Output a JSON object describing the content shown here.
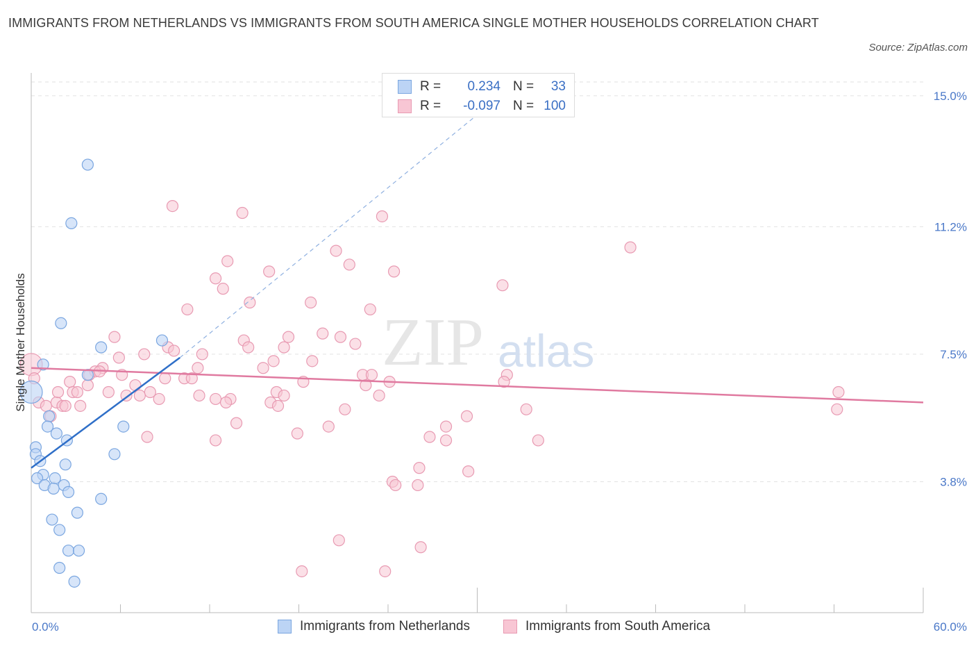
{
  "title": "IMMIGRANTS FROM NETHERLANDS VS IMMIGRANTS FROM SOUTH AMERICA SINGLE MOTHER HOUSEHOLDS CORRELATION CHART",
  "source": "Source: ZipAtlas.com",
  "watermark": {
    "zip": "ZIP",
    "atlas": "atlas"
  },
  "legend": {
    "rows": [
      {
        "r_label": "R =",
        "r_value": "0.234",
        "n_label": "N =",
        "n_value": "33"
      },
      {
        "r_label": "R =",
        "r_value": "-0.097",
        "n_label": "N =",
        "n_value": "100"
      }
    ]
  },
  "bottom_legend": {
    "netherlands": "Immigrants from Netherlands",
    "south_america": "Immigrants from South America"
  },
  "colors": {
    "netherlands_fill": "#bcd4f5",
    "netherlands_stroke": "#7aa6e0",
    "netherlands_line": "#2f6fc8",
    "south_america_fill": "#f8c6d4",
    "south_america_stroke": "#e89ab2",
    "south_america_line": "#e07aa0",
    "tick_text": "#4a78c8",
    "grid": "#e2e2e2"
  },
  "chart_data": {
    "type": "scatter",
    "title": "IMMIGRANTS FROM NETHERLANDS VS IMMIGRANTS FROM SOUTH AMERICA SINGLE MOTHER HOUSEHOLDS CORRELATION CHART",
    "xlabel": "",
    "ylabel": "Single Mother Households",
    "xlim": [
      0,
      60
    ],
    "ylim": [
      0,
      15.4
    ],
    "x_tick_labels": [
      "0.0%",
      "60.0%"
    ],
    "y_ticks": [
      3.8,
      7.5,
      11.2,
      15.0
    ],
    "y_tick_labels": [
      "3.8%",
      "7.5%",
      "11.2%",
      "15.0%"
    ],
    "grid": true,
    "legend_placement": "top-center",
    "series": [
      {
        "name": "Immigrants from Netherlands",
        "trend": {
          "x": [
            0,
            10
          ],
          "y": [
            4.2,
            7.4
          ],
          "dashed_extension_to": [
            31,
            14.8
          ]
        },
        "points": [
          [
            3.8,
            13.0
          ],
          [
            2.7,
            11.3
          ],
          [
            2.0,
            8.4
          ],
          [
            4.7,
            7.7
          ],
          [
            8.8,
            7.9
          ],
          [
            0.8,
            7.2
          ],
          [
            3.8,
            6.9
          ],
          [
            0.0,
            6.4
          ],
          [
            1.2,
            5.7
          ],
          [
            1.1,
            5.4
          ],
          [
            1.7,
            5.2
          ],
          [
            2.4,
            5.0
          ],
          [
            6.2,
            5.4
          ],
          [
            5.6,
            4.6
          ],
          [
            0.3,
            4.8
          ],
          [
            0.3,
            4.6
          ],
          [
            0.6,
            4.4
          ],
          [
            2.3,
            4.3
          ],
          [
            0.8,
            4.0
          ],
          [
            0.4,
            3.9
          ],
          [
            1.6,
            3.9
          ],
          [
            0.9,
            3.7
          ],
          [
            2.2,
            3.7
          ],
          [
            1.5,
            3.6
          ],
          [
            2.5,
            3.5
          ],
          [
            4.7,
            3.3
          ],
          [
            3.1,
            2.9
          ],
          [
            1.4,
            2.7
          ],
          [
            1.9,
            2.4
          ],
          [
            2.5,
            1.8
          ],
          [
            3.2,
            1.8
          ],
          [
            1.9,
            1.3
          ],
          [
            2.9,
            0.9
          ]
        ]
      },
      {
        "name": "Immigrants from South America",
        "trend": {
          "x": [
            0,
            60
          ],
          "y": [
            7.1,
            6.1
          ]
        },
        "points": [
          [
            9.5,
            11.8
          ],
          [
            14.2,
            11.6
          ],
          [
            23.6,
            11.5
          ],
          [
            40.3,
            10.6
          ],
          [
            13.2,
            10.2
          ],
          [
            20.5,
            10.5
          ],
          [
            21.4,
            10.1
          ],
          [
            16.0,
            9.9
          ],
          [
            24.4,
            9.9
          ],
          [
            12.4,
            9.7
          ],
          [
            12.9,
            9.4
          ],
          [
            31.7,
            9.5
          ],
          [
            14.7,
            9.0
          ],
          [
            18.8,
            9.0
          ],
          [
            10.5,
            8.8
          ],
          [
            22.8,
            8.8
          ],
          [
            5.6,
            8.0
          ],
          [
            19.6,
            8.1
          ],
          [
            14.3,
            7.9
          ],
          [
            17.3,
            8.0
          ],
          [
            20.8,
            8.0
          ],
          [
            14.6,
            7.7
          ],
          [
            17.0,
            7.7
          ],
          [
            21.8,
            7.8
          ],
          [
            9.2,
            7.7
          ],
          [
            9.6,
            7.6
          ],
          [
            7.6,
            7.5
          ],
          [
            11.5,
            7.5
          ],
          [
            5.9,
            7.4
          ],
          [
            16.3,
            7.3
          ],
          [
            18.9,
            7.3
          ],
          [
            11.2,
            7.1
          ],
          [
            15.6,
            7.1
          ],
          [
            0.0,
            7.2
          ],
          [
            4.8,
            7.1
          ],
          [
            4.3,
            7.0
          ],
          [
            4.6,
            7.0
          ],
          [
            3.9,
            6.9
          ],
          [
            6.1,
            6.9
          ],
          [
            9.0,
            6.8
          ],
          [
            10.3,
            6.8
          ],
          [
            10.8,
            6.8
          ],
          [
            22.3,
            6.9
          ],
          [
            22.9,
            6.9
          ],
          [
            32.0,
            6.9
          ],
          [
            2.6,
            6.7
          ],
          [
            3.8,
            6.6
          ],
          [
            7.0,
            6.6
          ],
          [
            18.3,
            6.7
          ],
          [
            22.5,
            6.6
          ],
          [
            24.1,
            6.7
          ],
          [
            31.8,
            6.7
          ],
          [
            0.2,
            6.8
          ],
          [
            2.8,
            6.4
          ],
          [
            5.2,
            6.4
          ],
          [
            6.4,
            6.3
          ],
          [
            7.3,
            6.3
          ],
          [
            11.3,
            6.3
          ],
          [
            13.4,
            6.2
          ],
          [
            16.5,
            6.4
          ],
          [
            17.0,
            6.3
          ],
          [
            23.4,
            6.3
          ],
          [
            54.3,
            6.4
          ],
          [
            8.6,
            6.2
          ],
          [
            12.4,
            6.2
          ],
          [
            13.1,
            6.1
          ],
          [
            16.1,
            6.1
          ],
          [
            16.6,
            6.0
          ],
          [
            0.5,
            6.1
          ],
          [
            1.0,
            6.0
          ],
          [
            1.7,
            6.1
          ],
          [
            2.1,
            6.0
          ],
          [
            2.3,
            6.0
          ],
          [
            3.3,
            6.0
          ],
          [
            1.3,
            5.7
          ],
          [
            21.1,
            5.9
          ],
          [
            33.3,
            5.9
          ],
          [
            54.2,
            5.9
          ],
          [
            29.3,
            5.7
          ],
          [
            13.8,
            5.5
          ],
          [
            27.9,
            5.4
          ],
          [
            20.0,
            5.4
          ],
          [
            17.9,
            5.2
          ],
          [
            7.8,
            5.1
          ],
          [
            12.4,
            5.0
          ],
          [
            26.8,
            5.1
          ],
          [
            27.9,
            5.0
          ],
          [
            34.1,
            5.0
          ],
          [
            26.1,
            4.2
          ],
          [
            29.4,
            4.1
          ],
          [
            24.3,
            3.8
          ],
          [
            24.5,
            3.7
          ],
          [
            26.0,
            3.7
          ],
          [
            20.7,
            2.1
          ],
          [
            26.2,
            1.9
          ],
          [
            18.2,
            1.2
          ],
          [
            23.8,
            1.2
          ],
          [
            3.1,
            6.4
          ],
          [
            8.0,
            6.4
          ],
          [
            1.8,
            6.4
          ]
        ]
      }
    ]
  }
}
